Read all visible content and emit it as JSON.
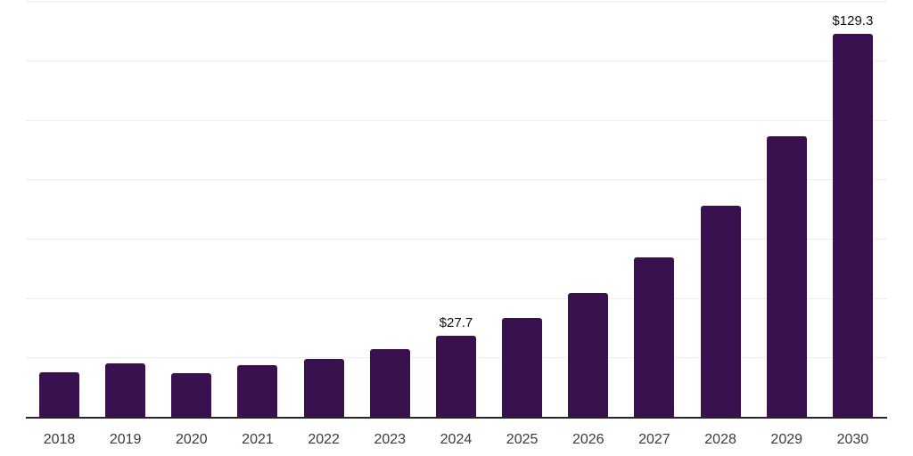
{
  "chart_data": {
    "type": "bar",
    "title": "",
    "xlabel": "",
    "ylabel": "",
    "categories": [
      "2018",
      "2019",
      "2020",
      "2021",
      "2022",
      "2023",
      "2024",
      "2025",
      "2026",
      "2027",
      "2028",
      "2029",
      "2030"
    ],
    "values": [
      15.3,
      18.2,
      15.0,
      17.8,
      19.7,
      23.1,
      27.7,
      33.5,
      41.9,
      54.1,
      71.3,
      94.9,
      129.3
    ],
    "data_labels": [
      "",
      "",
      "",
      "",
      "",
      "",
      "$27.7",
      "",
      "",
      "",
      "",
      "",
      "$129.3"
    ],
    "ylim": [
      0,
      140
    ],
    "gridline_step": 20,
    "grid": "horizontal",
    "legend": "none",
    "colors": {
      "bar": "#39114e",
      "axis": "#262626",
      "gridline": "#ededed",
      "value_label": "#0d0d0d",
      "tick_label": "#3a3a3a",
      "background": "#ffffff"
    }
  }
}
